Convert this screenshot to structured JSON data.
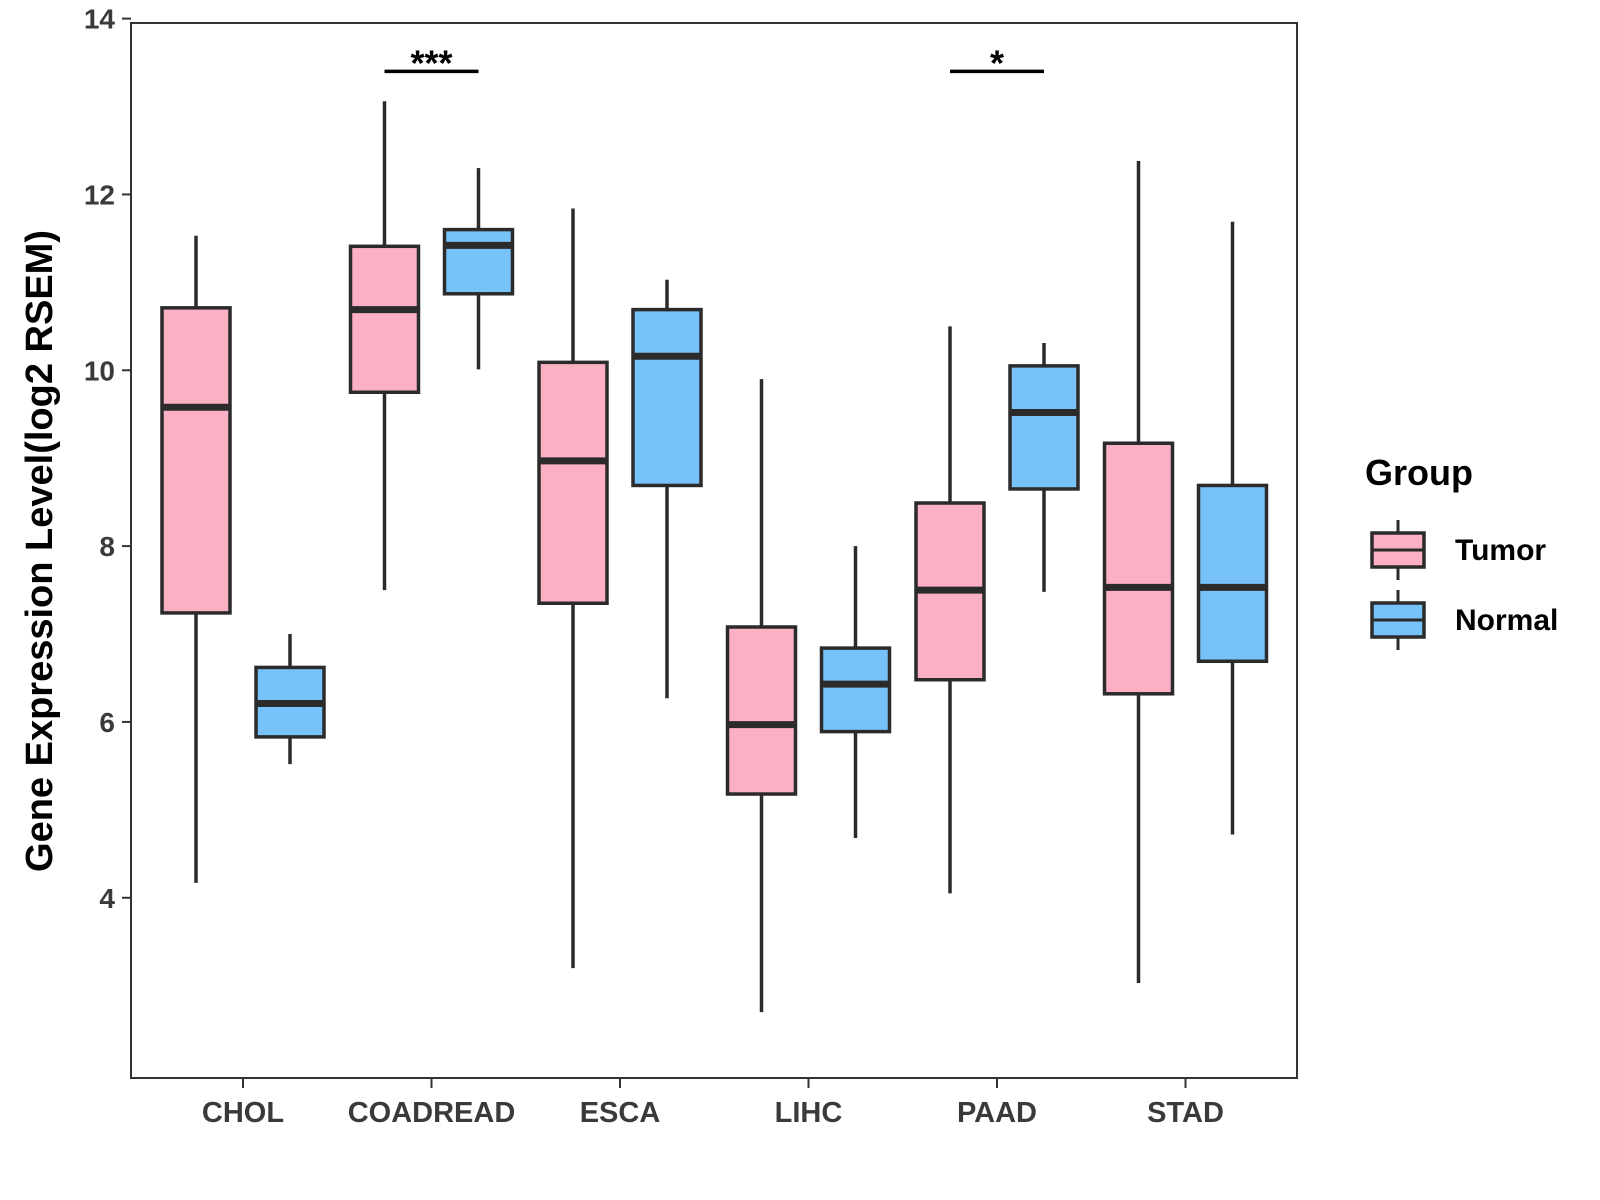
{
  "chart_data": {
    "type": "boxplot",
    "title": "",
    "xlabel": "",
    "ylabel": "Gene Expression Level(log2 RSEM)",
    "ylim": [
      1.95,
      13.95
    ],
    "yticks": [
      4,
      6,
      8,
      10,
      12,
      14
    ],
    "grid": false,
    "legend_position": "right",
    "categories": [
      "CHOL",
      "COADREAD",
      "ESCA",
      "LIHC",
      "PAAD",
      "STAD"
    ],
    "series": [
      {
        "name": "Tumor",
        "color": "#FCB0C3",
        "boxes": [
          {
            "min": 4.17,
            "q1": 7.24,
            "median": 9.58,
            "q3": 10.71,
            "max": 11.53
          },
          {
            "min": 7.5,
            "q1": 9.75,
            "median": 10.69,
            "q3": 11.41,
            "max": 13.06
          },
          {
            "min": 3.2,
            "q1": 7.35,
            "median": 8.97,
            "q3": 10.09,
            "max": 11.84
          },
          {
            "min": 2.7,
            "q1": 5.18,
            "median": 5.97,
            "q3": 7.08,
            "max": 9.9
          },
          {
            "min": 4.05,
            "q1": 6.48,
            "median": 7.5,
            "q3": 8.49,
            "max": 10.5
          },
          {
            "min": 3.03,
            "q1": 6.32,
            "median": 7.53,
            "q3": 9.17,
            "max": 12.38
          }
        ]
      },
      {
        "name": "Normal",
        "color": "#77C2F8",
        "boxes": [
          {
            "min": 5.52,
            "q1": 5.83,
            "median": 6.21,
            "q3": 6.62,
            "max": 7.0
          },
          {
            "min": 10.01,
            "q1": 10.87,
            "median": 11.42,
            "q3": 11.6,
            "max": 12.3
          },
          {
            "min": 6.27,
            "q1": 8.69,
            "median": 10.16,
            "q3": 10.69,
            "max": 11.03
          },
          {
            "min": 4.68,
            "q1": 5.89,
            "median": 6.43,
            "q3": 6.84,
            "max": 8.0
          },
          {
            "min": 7.48,
            "q1": 8.65,
            "median": 9.52,
            "q3": 10.05,
            "max": 10.31
          },
          {
            "min": 4.72,
            "q1": 6.69,
            "median": 7.53,
            "q3": 8.69,
            "max": 11.69
          }
        ]
      }
    ],
    "annotations": [
      {
        "category": "COADREAD",
        "label": "***",
        "y": 13.4
      },
      {
        "category": "PAAD",
        "label": "*",
        "y": 13.4
      }
    ],
    "legend": {
      "title": "Group",
      "entries": [
        "Tumor",
        "Normal"
      ]
    }
  }
}
